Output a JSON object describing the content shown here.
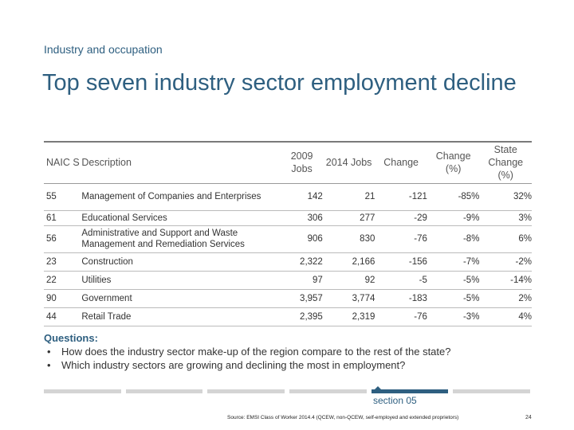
{
  "header": {
    "subtitle": "Industry and occupation",
    "title": "Top seven industry sector employment decline"
  },
  "table": {
    "headers": {
      "code": "NAIC S",
      "description": "Description",
      "jobs_2009": "2009 Jobs",
      "jobs_2014": "2014 Jobs",
      "change": "Change",
      "change_pct": "Change (%)",
      "state_change_pct": "State Change (%)"
    },
    "rows": [
      {
        "code": "55",
        "description": "Management of Companies and Enterprises",
        "jobs_2009": "142",
        "jobs_2014": "21",
        "change": "-121",
        "change_pct": "-85%",
        "state_change_pct": "32%"
      },
      {
        "code": "61",
        "description": "Educational Services",
        "jobs_2009": "306",
        "jobs_2014": "277",
        "change": "-29",
        "change_pct": "-9%",
        "state_change_pct": "3%"
      },
      {
        "code": "56",
        "description": "Administrative and Support and Waste Management and Remediation Services",
        "jobs_2009": "906",
        "jobs_2014": "830",
        "change": "-76",
        "change_pct": "-8%",
        "state_change_pct": "6%"
      },
      {
        "code": "23",
        "description": "Construction",
        "jobs_2009": "2,322",
        "jobs_2014": "2,166",
        "change": "-156",
        "change_pct": "-7%",
        "state_change_pct": "-2%"
      },
      {
        "code": "22",
        "description": "Utilities",
        "jobs_2009": "97",
        "jobs_2014": "92",
        "change": "-5",
        "change_pct": "-5%",
        "state_change_pct": "-14%"
      },
      {
        "code": "90",
        "description": "Government",
        "jobs_2009": "3,957",
        "jobs_2014": "3,774",
        "change": "-183",
        "change_pct": "-5%",
        "state_change_pct": "2%"
      },
      {
        "code": "44",
        "description": "Retail Trade",
        "jobs_2009": "2,395",
        "jobs_2014": "2,319",
        "change": "-76",
        "change_pct": "-3%",
        "state_change_pct": "4%"
      }
    ]
  },
  "questions": {
    "heading": "Questions:",
    "bullet": "•",
    "items": [
      "How does the industry sector make-up of the region compare to the rest of the state?",
      "Which industry sectors are growing and declining the most in employment?"
    ]
  },
  "footer": {
    "section_label": "section 05",
    "source": "Source: EMSI Class of Worker 2014.4 (QCEW, non-QCEW, self-employed and extended proprietors)",
    "page_number": "24",
    "accent_color": "#2e5f80"
  }
}
